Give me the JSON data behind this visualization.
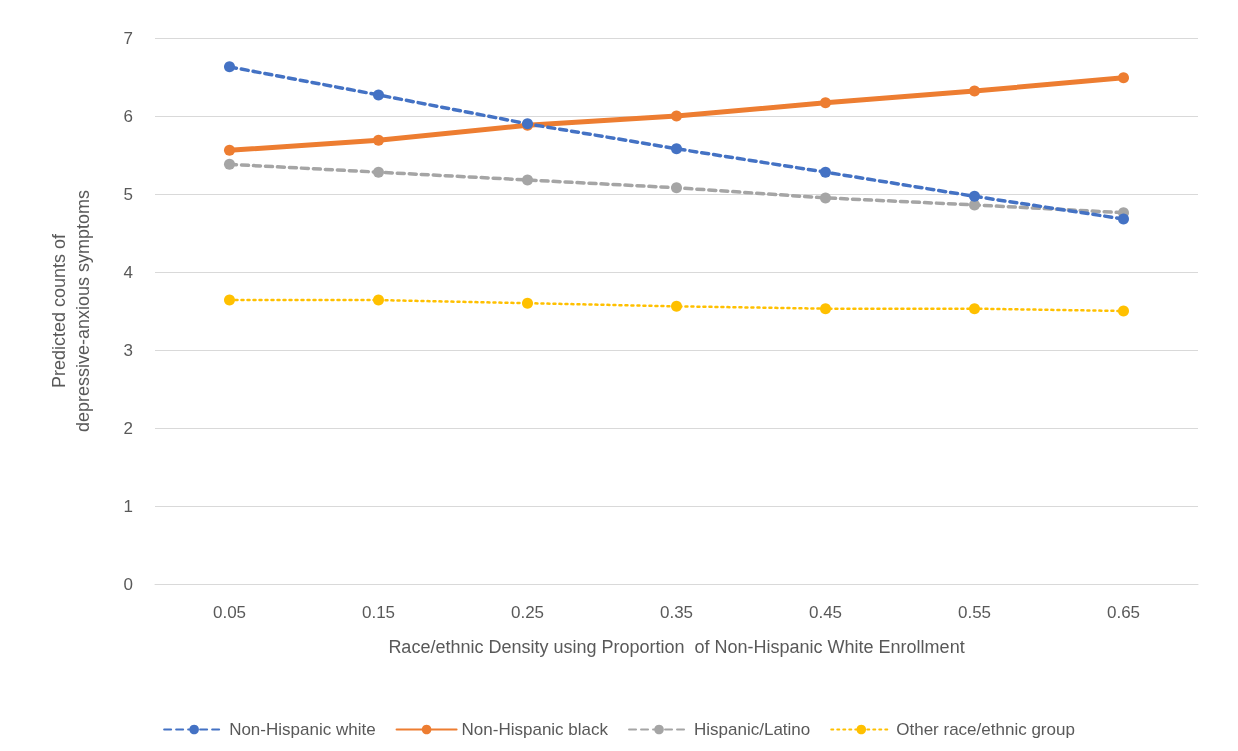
{
  "chart_data": {
    "type": "line",
    "xlabel": "Race/ethnic Density using Proportion  of Non-Hispanic White Enrollment",
    "ylabel": "Predicted counts of\ndepressive-anxious symptoms",
    "categories": [
      "0.05",
      "0.15",
      "0.25",
      "0.35",
      "0.45",
      "0.55",
      "0.65"
    ],
    "series": [
      {
        "name": "Non-Hispanic white",
        "color": "#4472c4",
        "line_style": "dashed",
        "values": [
          6.63,
          6.27,
          5.9,
          5.58,
          5.28,
          4.97,
          4.68
        ]
      },
      {
        "name": "Non-Hispanic black",
        "color": "#ed7d31",
        "line_style": "solid",
        "values": [
          5.56,
          5.69,
          5.88,
          6.0,
          6.17,
          6.32,
          6.49
        ]
      },
      {
        "name": "Hispanic/Latino",
        "color": "#a5a5a5",
        "line_style": "dashed",
        "values": [
          5.38,
          5.28,
          5.18,
          5.08,
          4.95,
          4.86,
          4.76
        ]
      },
      {
        "name": "Other race/ethnic group",
        "color": "#ffc000",
        "line_style": "dotted",
        "values": [
          3.64,
          3.64,
          3.6,
          3.56,
          3.53,
          3.53,
          3.5
        ]
      }
    ],
    "ylim": [
      0,
      7
    ],
    "yticks": [
      0,
      1,
      2,
      3,
      4,
      5,
      6,
      7
    ],
    "grid": "y",
    "legend": "bottom",
    "marker": "circle"
  }
}
